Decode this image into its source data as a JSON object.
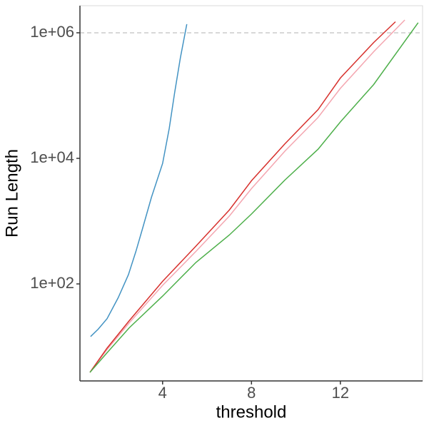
{
  "chart_data": {
    "type": "line",
    "x_label": "threshold",
    "y_label": "Run Length",
    "log_y": true,
    "xlim": [
      0.28,
      15.7
    ],
    "ylim": [
      2.85,
      2700000
    ],
    "xticks": [
      4,
      8,
      12
    ],
    "yticks": [
      {
        "value": 100,
        "label": "1e+02"
      },
      {
        "value": 10000,
        "label": "1e+04"
      },
      {
        "value": 1000000,
        "label": "1e+06"
      }
    ],
    "hline": 1000000,
    "hline_color": "#cccccc",
    "series": [
      {
        "color": "#4393c3",
        "x": [
          0.76,
          1.1,
          1.5,
          2.0,
          2.46,
          2.8,
          3.1,
          3.5,
          4.0,
          4.3,
          4.54,
          4.8,
          5.09
        ],
        "values": [
          14.5,
          19,
          28,
          60,
          140,
          330,
          770,
          2400,
          8300,
          30000,
          110000,
          400000,
          1370000
        ]
      },
      {
        "color": "#f4a6b0",
        "x": [
          0.73,
          1.5,
          2.5,
          4.0,
          5.5,
          7.0,
          8.0,
          9.5,
          11.0,
          12.0,
          13.5,
          14.9
        ],
        "values": [
          3.9,
          9,
          24,
          95,
          330,
          1200,
          3300,
          13000,
          45000,
          130000,
          500000,
          1600000
        ]
      },
      {
        "color": "#d7302c",
        "x": [
          0.73,
          1.5,
          2.5,
          4.0,
          5.5,
          7.0,
          8.0,
          9.5,
          11.0,
          12.0,
          13.5,
          14.48
        ],
        "values": [
          3.9,
          9.5,
          26,
          110,
          400,
          1500,
          4400,
          17000,
          60000,
          190000,
          700000,
          1500000
        ]
      },
      {
        "color": "#4daf4a",
        "x": [
          0.73,
          1.5,
          2.5,
          4.0,
          5.5,
          7.0,
          8.0,
          9.5,
          11.0,
          12.0,
          13.5,
          15.5
        ],
        "values": [
          3.9,
          8,
          20,
          64,
          220,
          600,
          1300,
          4500,
          14000,
          38000,
          150000,
          1450000
        ]
      }
    ]
  }
}
